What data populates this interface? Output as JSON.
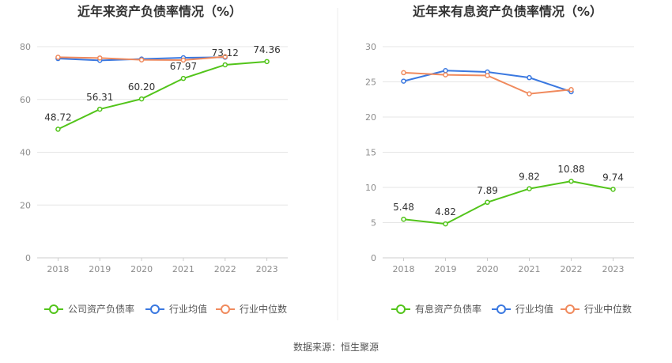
{
  "source": "数据来源：恒生聚源",
  "chart_data": [
    {
      "type": "line",
      "title": "近年来资产负债率情况（%）",
      "categories": [
        "2018",
        "2019",
        "2020",
        "2021",
        "2022",
        "2023"
      ],
      "ylim": [
        0,
        80
      ],
      "yticks": [
        "0",
        "20",
        "40",
        "60",
        "80"
      ],
      "grid": true,
      "legend_position": "bottom",
      "series": [
        {
          "name": "公司资产负债率",
          "color": "#52c41a",
          "values": [
            48.72,
            56.31,
            60.2,
            67.97,
            73.12,
            74.36
          ],
          "labels": [
            "48.72",
            "56.31",
            "60.20",
            "67.97",
            "73.12",
            "74.36"
          ]
        },
        {
          "name": "行业均值",
          "color": "#3a78e0",
          "values": [
            75.5,
            74.8,
            75.3,
            75.8,
            76.0,
            null
          ]
        },
        {
          "name": "行业中位数",
          "color": "#f08a5d",
          "values": [
            76.0,
            75.7,
            75.0,
            74.9,
            76.2,
            null
          ]
        }
      ]
    },
    {
      "type": "line",
      "title": "近年来有息资产负债率情况（%）",
      "categories": [
        "2018",
        "2019",
        "2020",
        "2021",
        "2022",
        "2023"
      ],
      "ylim": [
        0,
        30
      ],
      "yticks": [
        "0",
        "5",
        "10",
        "15",
        "20",
        "25",
        "30"
      ],
      "grid": true,
      "legend_position": "bottom",
      "series": [
        {
          "name": "有息资产负债率",
          "color": "#52c41a",
          "values": [
            5.48,
            4.82,
            7.89,
            9.82,
            10.88,
            9.74
          ],
          "labels": [
            "5.48",
            "4.82",
            "7.89",
            "9.82",
            "10.88",
            "9.74"
          ]
        },
        {
          "name": "行业均值",
          "color": "#3a78e0",
          "values": [
            25.1,
            26.6,
            26.4,
            25.6,
            23.6,
            null
          ]
        },
        {
          "name": "行业中位数",
          "color": "#f08a5d",
          "values": [
            26.3,
            26.0,
            25.9,
            23.3,
            23.9,
            null
          ]
        }
      ]
    }
  ]
}
